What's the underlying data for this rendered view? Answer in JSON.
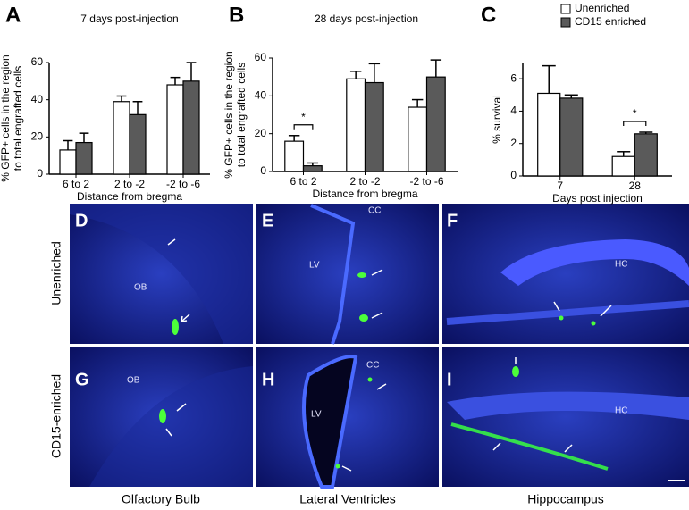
{
  "chart_data": [
    {
      "type": "bar",
      "panel": "A",
      "title": "7 days post-injection",
      "ylabel": [
        "% GFP+ cells in the region",
        "to total engrafted cells"
      ],
      "xlabel": "Distance from bregma",
      "categories": [
        "6 to 2",
        "2 to -2",
        "-2 to -6"
      ],
      "series": [
        {
          "name": "Unenriched",
          "color": "#ffffff",
          "values": [
            13,
            39,
            48
          ],
          "errors": [
            5,
            3,
            4
          ]
        },
        {
          "name": "CD15 enriched",
          "color": "#5a5a5a",
          "values": [
            17,
            32,
            50
          ],
          "errors": [
            5,
            7,
            10
          ]
        }
      ],
      "ylim": [
        0,
        60
      ],
      "yticks": [
        0,
        20,
        40,
        60
      ]
    },
    {
      "type": "bar",
      "panel": "B",
      "title": "28 days post-injection",
      "ylabel": [
        "% GFP+ cells in the region",
        "to total engrafted cells"
      ],
      "xlabel": "Distance from bregma",
      "categories": [
        "6 to 2",
        "2 to -2",
        "-2 to -6"
      ],
      "series": [
        {
          "name": "Unenriched",
          "color": "#ffffff",
          "values": [
            16,
            49,
            34
          ],
          "errors": [
            3,
            4,
            4
          ]
        },
        {
          "name": "CD15 enriched",
          "color": "#5a5a5a",
          "values": [
            3,
            47,
            50
          ],
          "errors": [
            1.5,
            10,
            9
          ]
        }
      ],
      "ylim": [
        0,
        60
      ],
      "yticks": [
        0,
        20,
        40,
        60
      ],
      "annotations": [
        {
          "text": "*",
          "category": "6 to 2"
        }
      ]
    },
    {
      "type": "bar",
      "panel": "C",
      "ylabel": [
        "% survival"
      ],
      "xlabel": "Days post injection",
      "categories": [
        "7",
        "28"
      ],
      "series": [
        {
          "name": "Unenriched",
          "color": "#ffffff",
          "values": [
            5.1,
            1.2
          ],
          "errors": [
            1.7,
            0.3
          ]
        },
        {
          "name": "CD15 enriched",
          "color": "#5a5a5a",
          "values": [
            4.8,
            2.6
          ],
          "errors": [
            0.2,
            0.1
          ]
        }
      ],
      "ylim": [
        0,
        7
      ],
      "yticks": [
        0,
        2,
        4,
        6
      ],
      "legend": "upper right",
      "annotations": [
        {
          "text": "*",
          "category": "28"
        }
      ]
    }
  ],
  "images": {
    "rows": [
      "Unenriched",
      "CD15-enriched"
    ],
    "columns": [
      "Olfactory Bulb",
      "Lateral Ventricles",
      "Hippocampus"
    ],
    "panels": [
      {
        "letter": "D",
        "labels": [
          "OB"
        ]
      },
      {
        "letter": "E",
        "labels": [
          "CC",
          "LV"
        ]
      },
      {
        "letter": "F",
        "labels": [
          "HC"
        ]
      },
      {
        "letter": "G",
        "labels": [
          "OB"
        ]
      },
      {
        "letter": "H",
        "labels": [
          "CC",
          "LV"
        ]
      },
      {
        "letter": "I",
        "labels": [
          "HC"
        ]
      }
    ]
  }
}
